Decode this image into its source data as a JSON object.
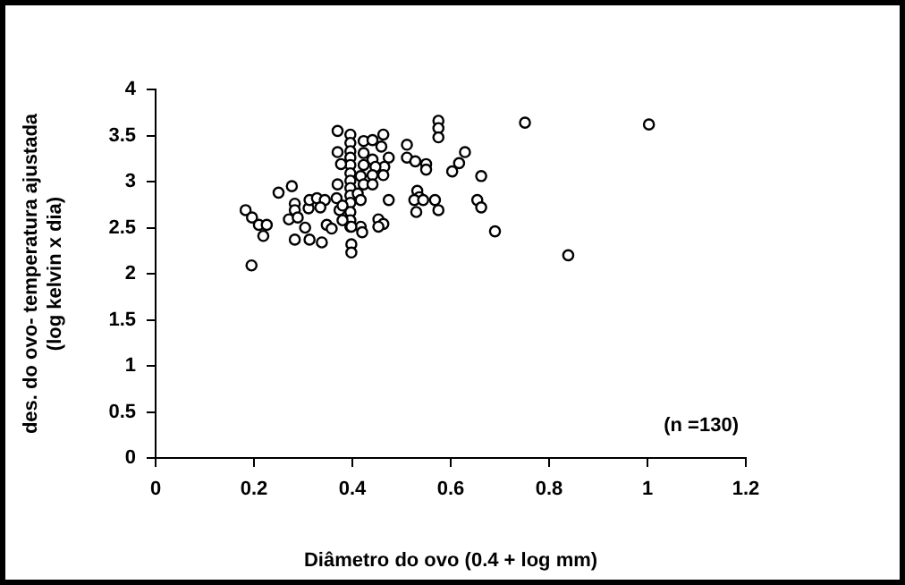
{
  "chart_data": {
    "type": "scatter",
    "xlabel": "Diâmetro do ovo (0.4 + log mm)",
    "ylabel": "des. do ovo- temperatura ajustada\n(log kelvin x dia)",
    "annotations": [
      "(n =130)"
    ],
    "xlim": [
      0,
      1.2
    ],
    "xticks": [
      0,
      0.2,
      0.4,
      0.6,
      0.8,
      1,
      1.2
    ],
    "ylim": [
      0,
      4
    ],
    "yticks": [
      0,
      0.5,
      1,
      1.5,
      2,
      2.5,
      3,
      3.5,
      4
    ],
    "grid": false,
    "legend": false,
    "marker": "circle",
    "series": [
      {
        "color": "#000000",
        "x": [
          0.183,
          0.196,
          0.21,
          0.226,
          0.219,
          0.195,
          0.25,
          0.277,
          0.283,
          0.283,
          0.271,
          0.289,
          0.304,
          0.283,
          0.313,
          0.338,
          0.311,
          0.313,
          0.328,
          0.344,
          0.335,
          0.348,
          0.358,
          0.37,
          0.396,
          0.396,
          0.396,
          0.396,
          0.396,
          0.396,
          0.396,
          0.396,
          0.396,
          0.396,
          0.396,
          0.396,
          0.396,
          0.398,
          0.398,
          0.37,
          0.377,
          0.37,
          0.368,
          0.374,
          0.38,
          0.38,
          0.423,
          0.441,
          0.463,
          0.459,
          0.423,
          0.441,
          0.474,
          0.465,
          0.447,
          0.423,
          0.417,
          0.441,
          0.463,
          0.423,
          0.441,
          0.411,
          0.417,
          0.474,
          0.417,
          0.42,
          0.398,
          0.453,
          0.463,
          0.453,
          0.511,
          0.511,
          0.528,
          0.55,
          0.55,
          0.575,
          0.575,
          0.575,
          0.751,
          0.629,
          0.617,
          0.603,
          0.662,
          0.532,
          0.536,
          0.526,
          0.544,
          0.568,
          0.53,
          0.575,
          0.654,
          0.662,
          0.69,
          1.003,
          0.839
        ],
        "values": [
          2.69,
          2.61,
          2.53,
          2.53,
          2.41,
          2.09,
          2.88,
          2.95,
          2.76,
          2.69,
          2.59,
          2.61,
          2.5,
          2.37,
          2.37,
          2.34,
          2.71,
          2.8,
          2.82,
          2.8,
          2.72,
          2.53,
          2.49,
          3.55,
          3.51,
          3.42,
          3.33,
          3.26,
          3.18,
          3.09,
          3.01,
          2.93,
          2.85,
          2.77,
          2.67,
          2.58,
          2.51,
          2.32,
          2.23,
          3.32,
          3.19,
          2.97,
          2.82,
          2.69,
          2.58,
          2.74,
          3.44,
          3.45,
          3.51,
          3.38,
          3.31,
          3.24,
          3.26,
          3.16,
          3.16,
          3.18,
          3.06,
          3.07,
          3.07,
          2.97,
          2.97,
          2.87,
          2.8,
          2.8,
          2.51,
          2.45,
          2.51,
          2.59,
          2.54,
          2.51,
          3.4,
          3.26,
          3.22,
          3.19,
          3.13,
          3.66,
          3.58,
          3.48,
          3.64,
          3.32,
          3.2,
          3.11,
          3.06,
          2.9,
          2.83,
          2.8,
          2.8,
          2.8,
          2.67,
          2.69,
          2.8,
          2.72,
          2.46,
          3.62,
          2.2
        ]
      }
    ]
  }
}
